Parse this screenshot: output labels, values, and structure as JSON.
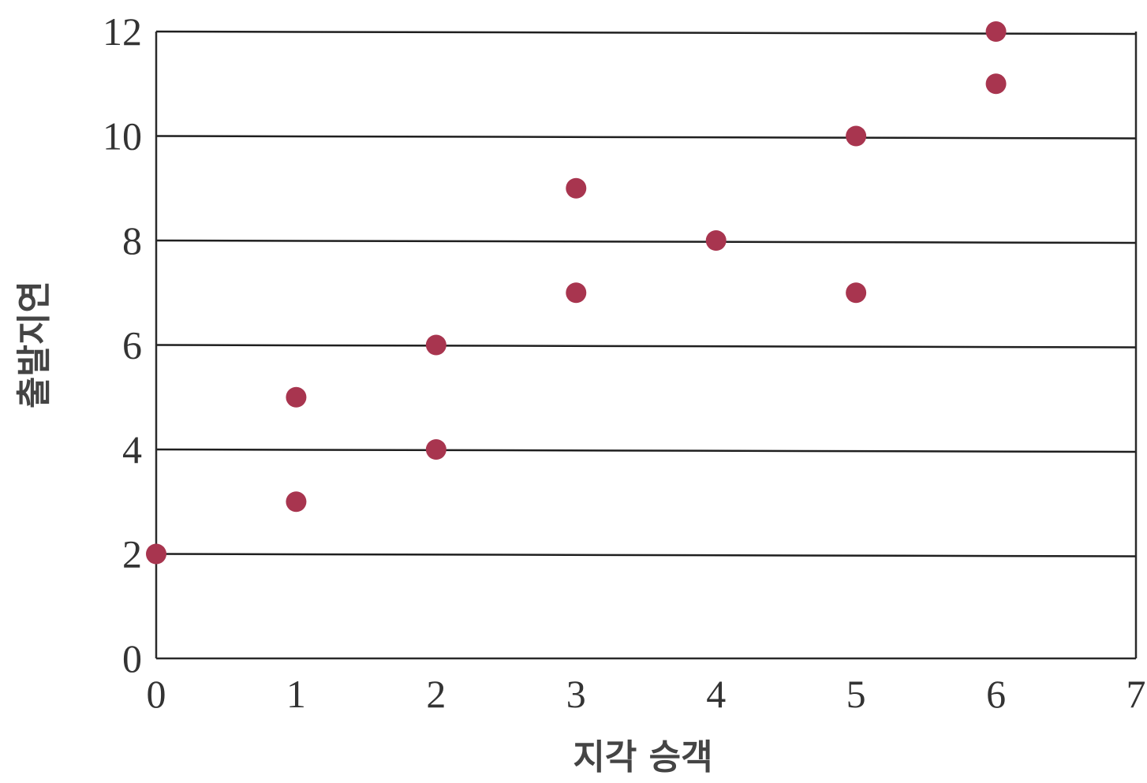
{
  "chart_data": {
    "type": "scatter",
    "title": "",
    "xlabel": "지각 승객",
    "ylabel": "출발지연",
    "xlim": [
      0,
      7
    ],
    "ylim": [
      0,
      12
    ],
    "xticks": [
      0,
      1,
      2,
      3,
      4,
      5,
      6,
      7
    ],
    "yticks": [
      0,
      2,
      4,
      6,
      8,
      10,
      12
    ],
    "grid": "horizontal",
    "legend": "none",
    "marker_color": "#a8354f",
    "points": [
      {
        "x": 0,
        "y": 2
      },
      {
        "x": 1,
        "y": 3
      },
      {
        "x": 1,
        "y": 5
      },
      {
        "x": 2,
        "y": 4
      },
      {
        "x": 2,
        "y": 6
      },
      {
        "x": 3,
        "y": 7
      },
      {
        "x": 3,
        "y": 9
      },
      {
        "x": 4,
        "y": 8
      },
      {
        "x": 5,
        "y": 7
      },
      {
        "x": 5,
        "y": 10
      },
      {
        "x": 6,
        "y": 11
      },
      {
        "x": 6,
        "y": 12
      }
    ]
  }
}
